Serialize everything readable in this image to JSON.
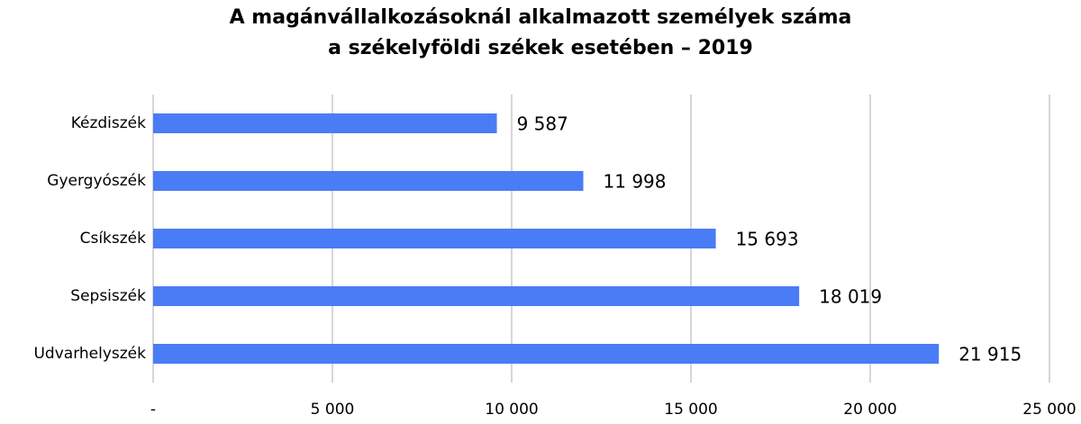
{
  "chart_data": {
    "type": "bar",
    "orientation": "horizontal",
    "title": [
      "A magánvállalkozásoknál alkalmazott személyek száma",
      "a székelyföldi székek esetében – 2019"
    ],
    "categories": [
      "Kézdiszék",
      "Gyergyószék",
      "Csíkszék",
      "Sepsiszék",
      "Udvarhelyszék"
    ],
    "values": [
      9587,
      11998,
      15693,
      18019,
      21915
    ],
    "value_labels": [
      "9 587",
      "11 998",
      "15 693",
      "18 019",
      "21 915"
    ],
    "color": "#4a7cf6",
    "xlim": [
      0,
      25000
    ],
    "xticks": [
      {
        "value": 0,
        "label": "-"
      },
      {
        "value": 5000,
        "label": "5 000"
      },
      {
        "value": 10000,
        "label": "10 000"
      },
      {
        "value": 15000,
        "label": "15 000"
      },
      {
        "value": 20000,
        "label": "20 000"
      },
      {
        "value": 25000,
        "label": "25 000"
      }
    ],
    "grid": true
  }
}
